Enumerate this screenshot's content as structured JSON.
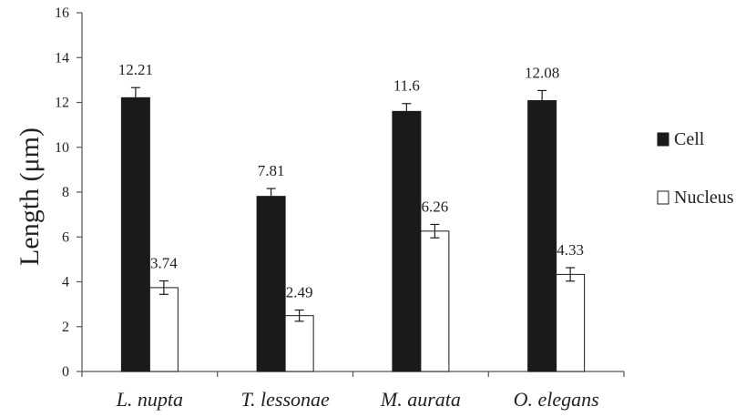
{
  "chart_data": {
    "type": "bar",
    "categories": [
      "L. nupta",
      "T. lessonae",
      "M. aurata",
      "O. elegans"
    ],
    "series": [
      {
        "name": "Cell",
        "values": [
          12.21,
          7.81,
          11.6,
          12.08
        ],
        "errors": [
          0.45,
          0.35,
          0.35,
          0.45
        ],
        "labels": [
          "12.21",
          "7.81",
          "11.6",
          "12.08"
        ],
        "color": "#1a1a1a"
      },
      {
        "name": "Nucleus",
        "values": [
          3.74,
          2.49,
          6.26,
          4.33
        ],
        "errors": [
          0.3,
          0.25,
          0.3,
          0.3
        ],
        "labels": [
          "3.74",
          "2.49",
          "6.26",
          "4.33"
        ],
        "color": "#ffffff"
      }
    ],
    "ylabel": "Length (μm)",
    "xlabel": "",
    "ylim": [
      0,
      16
    ],
    "yticks": [
      0,
      2,
      4,
      6,
      8,
      10,
      12,
      14,
      16
    ],
    "legend_position": "right",
    "grid": false
  }
}
